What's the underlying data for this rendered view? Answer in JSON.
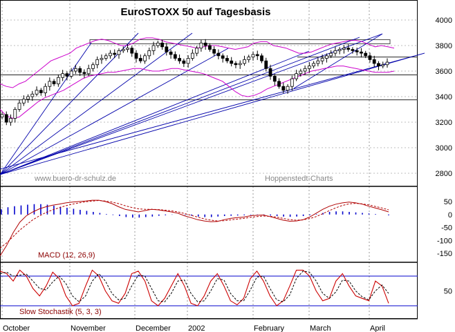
{
  "chart_data": {
    "type": "candlestick",
    "title": "EuroSTOXX 50 auf Tagesbasis",
    "watermarks": [
      "www.buero-dr-schulz.de",
      "Hoppenstedt-Charts"
    ],
    "x_axis_months": [
      "October",
      "November",
      "December",
      "2002",
      "February",
      "March",
      "April"
    ],
    "price_panel": {
      "y_ticks": [
        2800,
        3000,
        3200,
        3400,
        3600,
        3800,
        4000
      ],
      "ylim": [
        2730,
        4080
      ],
      "horizontal_lines": [
        3830,
        3710,
        3570,
        3375
      ],
      "price_series_approx": [
        3260,
        3200,
        3230,
        3300,
        3350,
        3380,
        3400,
        3420,
        3450,
        3430,
        3480,
        3520,
        3500,
        3550,
        3580,
        3560,
        3600,
        3620,
        3590,
        3580,
        3620,
        3650,
        3690,
        3700,
        3720,
        3740,
        3730,
        3760,
        3770,
        3780,
        3740,
        3700,
        3680,
        3720,
        3760,
        3800,
        3820,
        3790,
        3750,
        3730,
        3700,
        3680,
        3660,
        3700,
        3740,
        3780,
        3820,
        3800,
        3770,
        3740,
        3720,
        3700,
        3680,
        3660,
        3650,
        3660,
        3690,
        3710,
        3730,
        3720,
        3680,
        3620,
        3560,
        3520,
        3480,
        3450,
        3480,
        3540,
        3580,
        3600,
        3620,
        3640,
        3660,
        3680,
        3700,
        3720,
        3740,
        3760,
        3770,
        3780,
        3770,
        3760,
        3750,
        3740,
        3720,
        3690,
        3660,
        3640,
        3650,
        3670
      ],
      "bollinger_upper_approx": [
        3500,
        3480,
        3470,
        3500,
        3520,
        3560,
        3600,
        3640,
        3680,
        3700,
        3720,
        3740,
        3780,
        3800,
        3820,
        3840,
        3850,
        3840,
        3820,
        3800,
        3800,
        3820,
        3850,
        3860,
        3860,
        3850,
        3830,
        3820,
        3810,
        3800,
        3790,
        3780,
        3790,
        3800,
        3800,
        3790,
        3780,
        3770,
        3780,
        3790,
        3820,
        3830,
        3830,
        3800,
        3790,
        3780,
        3760,
        3740,
        3740,
        3750,
        3770,
        3790,
        3810,
        3820,
        3830,
        3840,
        3840,
        3830,
        3810,
        3790,
        3800,
        3790,
        3780
      ],
      "bollinger_lower_approx": [
        3300,
        3250,
        3230,
        3240,
        3280,
        3320,
        3360,
        3390,
        3410,
        3430,
        3450,
        3480,
        3510,
        3540,
        3560,
        3570,
        3580,
        3590,
        3590,
        3600,
        3610,
        3620,
        3620,
        3610,
        3600,
        3600,
        3610,
        3620,
        3620,
        3610,
        3600,
        3590,
        3580,
        3560,
        3540,
        3520,
        3480,
        3440,
        3410,
        3400,
        3410,
        3430,
        3460,
        3480,
        3500,
        3520,
        3540,
        3560,
        3580,
        3600,
        3610,
        3620,
        3630,
        3640,
        3640,
        3630,
        3620,
        3610,
        3600,
        3590,
        3590,
        3590,
        3600
      ]
    },
    "macd_panel": {
      "label": "MACD (12, 26,9)",
      "y_ticks": [
        50,
        0,
        -50,
        -100,
        -150
      ],
      "ylim": [
        -180,
        85
      ],
      "macd_approx": [
        -160,
        -120,
        -70,
        -30,
        -5,
        10,
        22,
        30,
        36,
        40,
        45,
        48,
        50,
        52,
        55,
        55,
        50,
        42,
        30,
        20,
        15,
        10,
        15,
        20,
        18,
        14,
        10,
        5,
        -5,
        -12,
        -20,
        -25,
        -28,
        -27,
        -20,
        -15,
        -12,
        -10,
        -5,
        -3,
        -2,
        -8,
        -15,
        -22,
        -26,
        -25,
        -20,
        -10,
        5,
        20,
        32,
        40,
        45,
        48,
        45,
        40,
        32,
        25,
        18,
        10
      ],
      "signal_approx": [
        -130,
        -110,
        -85,
        -60,
        -40,
        -20,
        -5,
        8,
        18,
        26,
        34,
        40,
        45,
        49,
        52,
        54,
        52,
        48,
        42,
        34,
        27,
        22,
        20,
        20,
        19,
        17,
        14,
        10,
        4,
        -3,
        -10,
        -17,
        -22,
        -25,
        -24,
        -21,
        -18,
        -15,
        -11,
        -8,
        -6,
        -7,
        -10,
        -15,
        -20,
        -22,
        -21,
        -16,
        -8,
        3,
        15,
        26,
        35,
        41,
        43,
        41,
        37,
        31,
        25,
        18
      ],
      "histogram_approx": [
        20,
        28,
        32,
        35,
        38,
        40,
        40,
        38,
        34,
        30,
        26,
        22,
        18,
        14,
        10,
        6,
        2,
        -2,
        -6,
        -10,
        -12,
        -12,
        -10,
        -8,
        -5,
        -3,
        -1,
        0,
        -2,
        -5,
        -8,
        -10,
        -10,
        -8,
        -6,
        -5,
        -4,
        -3,
        -2,
        -1,
        -2,
        -4,
        -6,
        -8,
        -9,
        -8,
        -6,
        -3,
        2,
        6,
        10,
        12,
        12,
        10,
        8,
        6,
        4,
        2,
        0,
        -3
      ]
    },
    "stochastic_panel": {
      "label": "Slow Stochastik (5, 3, 3)",
      "y_ticks": [
        50
      ],
      "ylim": [
        0,
        100
      ],
      "reference_lines": [
        80,
        20
      ],
      "k_approx": [
        90,
        85,
        70,
        92,
        80,
        55,
        40,
        60,
        88,
        75,
        40,
        20,
        25,
        60,
        92,
        80,
        50,
        30,
        25,
        45,
        85,
        90,
        70,
        30,
        20,
        35,
        60,
        85,
        60,
        25,
        20,
        40,
        70,
        85,
        60,
        30,
        22,
        35,
        75,
        90,
        70,
        40,
        20,
        30,
        60,
        92,
        92,
        80,
        50,
        30,
        35,
        70,
        85,
        60,
        40,
        35,
        30,
        70,
        60,
        25
      ],
      "d_approx": [
        85,
        88,
        80,
        82,
        84,
        70,
        55,
        52,
        68,
        80,
        65,
        40,
        28,
        40,
        70,
        85,
        70,
        45,
        32,
        35,
        60,
        82,
        80,
        55,
        30,
        28,
        45,
        70,
        72,
        45,
        28,
        30,
        50,
        75,
        72,
        45,
        30,
        30,
        52,
        78,
        80,
        55,
        32,
        28,
        42,
        75,
        90,
        88,
        70,
        45,
        35,
        48,
        72,
        70,
        50,
        38,
        32,
        50,
        62,
        45
      ]
    }
  }
}
